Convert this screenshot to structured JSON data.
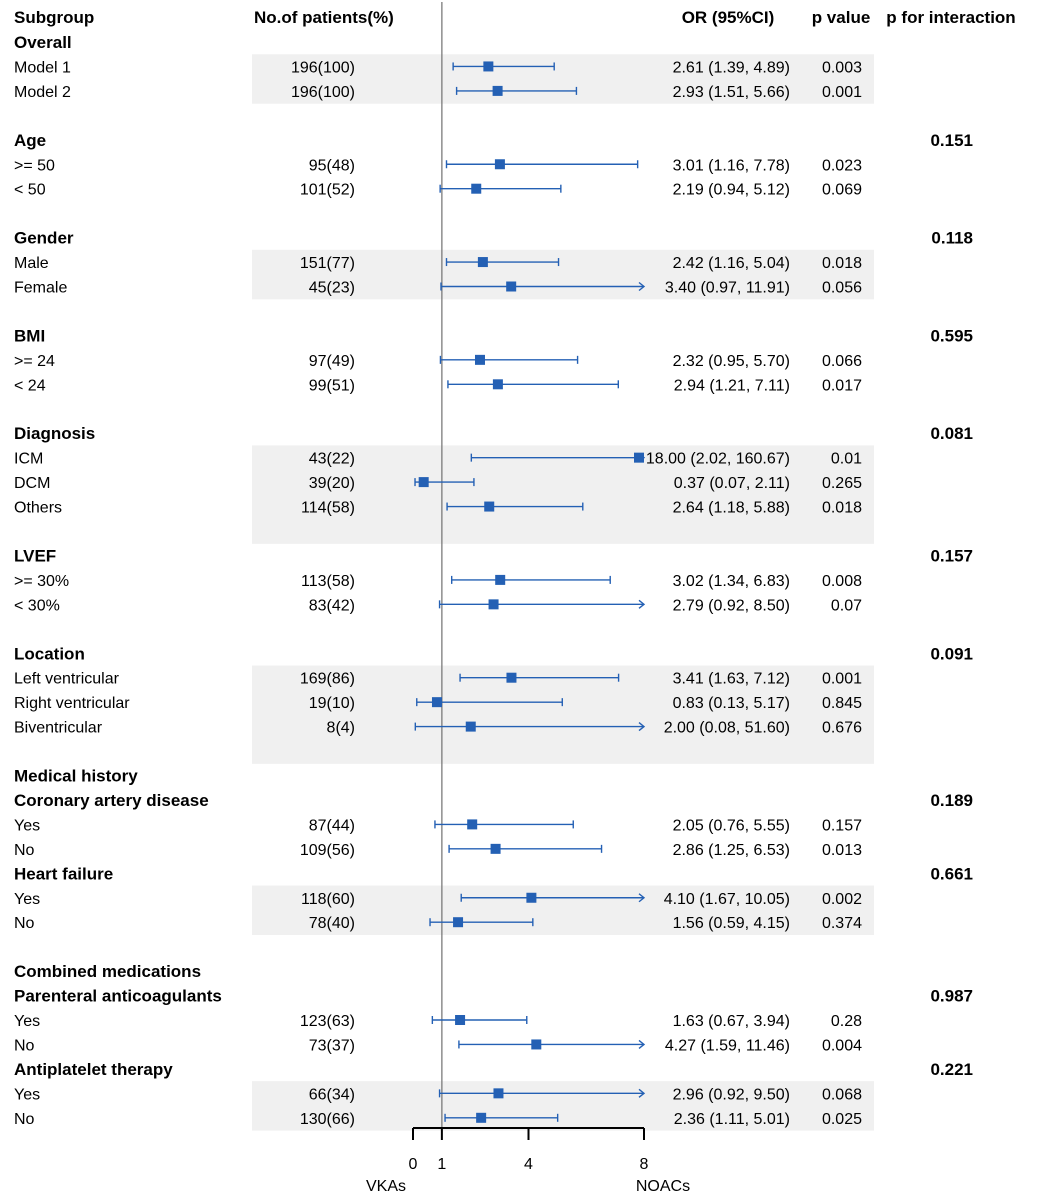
{
  "colors": {
    "marker": "#2460b4",
    "band": "#f0f0f0",
    "axis": "#000000",
    "refline": "#7a7a7a"
  },
  "chart_data": {
    "type": "forest",
    "headers": {
      "subgroup": "Subgroup",
      "patients": "No.of patients(%)",
      "or": "OR (95%CI)",
      "p": "p value",
      "p_interaction": "p for interaction"
    },
    "axis": {
      "xlim": [
        0,
        8
      ],
      "ticks": [
        0,
        1,
        4,
        8
      ],
      "tick_labels": [
        "0",
        "1",
        "4",
        "8"
      ],
      "reference_line": 1,
      "left_label": "VKAs",
      "right_label": "NOACs"
    },
    "rows": [
      {
        "type": "group",
        "label": "Overall",
        "p_interaction": ""
      },
      {
        "type": "item",
        "label": "Model 1",
        "patients": "196(100)",
        "or_text": "2.61 (1.39, 4.89)",
        "p": "0.003",
        "or": 2.61,
        "lo": 1.39,
        "hi": 4.89,
        "band": 1
      },
      {
        "type": "item",
        "label": "Model 2",
        "patients": "196(100)",
        "or_text": "2.93 (1.51, 5.66)",
        "p": "0.001",
        "or": 2.93,
        "lo": 1.51,
        "hi": 5.66,
        "band": 1
      },
      {
        "type": "blank"
      },
      {
        "type": "group",
        "label": "Age",
        "p_interaction": "0.151"
      },
      {
        "type": "item",
        "label": ">= 50",
        "patients": "95(48)",
        "or_text": "3.01 (1.16, 7.78)",
        "p": "0.023",
        "or": 3.01,
        "lo": 1.16,
        "hi": 7.78,
        "band": 0
      },
      {
        "type": "item",
        "label": "< 50",
        "patients": "101(52)",
        "or_text": "2.19 (0.94, 5.12)",
        "p": "0.069",
        "or": 2.19,
        "lo": 0.94,
        "hi": 5.12,
        "band": 0
      },
      {
        "type": "blank"
      },
      {
        "type": "group",
        "label": "Gender",
        "p_interaction": "0.118"
      },
      {
        "type": "item",
        "label": "Male",
        "patients": "151(77)",
        "or_text": "2.42 (1.16, 5.04)",
        "p": "0.018",
        "or": 2.42,
        "lo": 1.16,
        "hi": 5.04,
        "band": 1
      },
      {
        "type": "item",
        "label": "Female",
        "patients": "45(23)",
        "or_text": "3.40 (0.97, 11.91)",
        "p": "0.056",
        "or": 3.4,
        "lo": 0.97,
        "hi": 11.91,
        "band": 1
      },
      {
        "type": "blank"
      },
      {
        "type": "group",
        "label": "BMI",
        "p_interaction": "0.595"
      },
      {
        "type": "item",
        "label": ">= 24",
        "patients": "97(49)",
        "or_text": "2.32 (0.95, 5.70)",
        "p": "0.066",
        "or": 2.32,
        "lo": 0.95,
        "hi": 5.7,
        "band": 0
      },
      {
        "type": "item",
        "label": "< 24",
        "patients": "99(51)",
        "or_text": "2.94 (1.21, 7.11)",
        "p": "0.017",
        "or": 2.94,
        "lo": 1.21,
        "hi": 7.11,
        "band": 0
      },
      {
        "type": "blank"
      },
      {
        "type": "group",
        "label": "Diagnosis",
        "p_interaction": "0.081"
      },
      {
        "type": "item",
        "label": "ICM",
        "patients": "43(22)",
        "or_text": "18.00 (2.02, 160.67)",
        "p": "0.01",
        "or": 18.0,
        "lo": 2.02,
        "hi": 160.67,
        "band": 1
      },
      {
        "type": "item",
        "label": "DCM",
        "patients": "39(20)",
        "or_text": "0.37 (0.07, 2.11)",
        "p": "0.265",
        "or": 0.37,
        "lo": 0.07,
        "hi": 2.11,
        "band": 1
      },
      {
        "type": "item",
        "label": "Others",
        "patients": "114(58)",
        "or_text": "2.64 (1.18, 5.88)",
        "p": "0.018",
        "or": 2.64,
        "lo": 1.18,
        "hi": 5.88,
        "band": 1
      },
      {
        "type": "blank",
        "band": 1
      },
      {
        "type": "group",
        "label": "LVEF",
        "p_interaction": "0.157"
      },
      {
        "type": "item",
        "label": ">= 30%",
        "patients": "113(58)",
        "or_text": "3.02 (1.34, 6.83)",
        "p": "0.008",
        "or": 3.02,
        "lo": 1.34,
        "hi": 6.83,
        "band": 0
      },
      {
        "type": "item",
        "label": "< 30%",
        "patients": "83(42)",
        "or_text": "2.79 (0.92, 8.50)",
        "p": "0.07",
        "or": 2.79,
        "lo": 0.92,
        "hi": 8.5,
        "band": 0
      },
      {
        "type": "blank"
      },
      {
        "type": "group",
        "label": "Location",
        "p_interaction": "0.091"
      },
      {
        "type": "item",
        "label": "Left ventricular",
        "patients": "169(86)",
        "or_text": "3.41 (1.63, 7.12)",
        "p": "0.001",
        "or": 3.41,
        "lo": 1.63,
        "hi": 7.12,
        "band": 1
      },
      {
        "type": "item",
        "label": "Right ventricular",
        "patients": "19(10)",
        "or_text": "0.83 (0.13, 5.17)",
        "p": "0.845",
        "or": 0.83,
        "lo": 0.13,
        "hi": 5.17,
        "band": 1
      },
      {
        "type": "item",
        "label": "Biventricular",
        "patients": "8(4)",
        "or_text": "2.00 (0.08, 51.60)",
        "p": "0.676",
        "or": 2.0,
        "lo": 0.08,
        "hi": 51.6,
        "band": 1
      },
      {
        "type": "blank",
        "band": 1
      },
      {
        "type": "group",
        "label": "Medical history",
        "p_interaction": ""
      },
      {
        "type": "group",
        "label": "Coronary artery disease",
        "p_interaction": "0.189"
      },
      {
        "type": "item",
        "label": "Yes",
        "patients": "87(44)",
        "or_text": "2.05 (0.76, 5.55)",
        "p": "0.157",
        "or": 2.05,
        "lo": 0.76,
        "hi": 5.55,
        "band": 0
      },
      {
        "type": "item",
        "label": "No",
        "patients": "109(56)",
        "or_text": "2.86 (1.25, 6.53)",
        "p": "0.013",
        "or": 2.86,
        "lo": 1.25,
        "hi": 6.53,
        "band": 0
      },
      {
        "type": "group",
        "label": "Heart failure",
        "p_interaction": "0.661"
      },
      {
        "type": "item",
        "label": "Yes",
        "patients": "118(60)",
        "or_text": "4.10 (1.67, 10.05)",
        "p": "0.002",
        "or": 4.1,
        "lo": 1.67,
        "hi": 10.05,
        "band": 1
      },
      {
        "type": "item",
        "label": "No",
        "patients": "78(40)",
        "or_text": "1.56 (0.59, 4.15)",
        "p": "0.374",
        "or": 1.56,
        "lo": 0.59,
        "hi": 4.15,
        "band": 1
      },
      {
        "type": "blank"
      },
      {
        "type": "group",
        "label": "Combined medications",
        "p_interaction": ""
      },
      {
        "type": "group",
        "label": "Parenteral anticoagulants",
        "p_interaction": "0.987"
      },
      {
        "type": "item",
        "label": "Yes",
        "patients": "123(63)",
        "or_text": "1.63 (0.67, 3.94)",
        "p": "0.28",
        "or": 1.63,
        "lo": 0.67,
        "hi": 3.94,
        "band": 0
      },
      {
        "type": "item",
        "label": "No",
        "patients": "73(37)",
        "or_text": "4.27 (1.59, 11.46)",
        "p": "0.004",
        "or": 4.27,
        "lo": 1.59,
        "hi": 11.46,
        "band": 0
      },
      {
        "type": "group",
        "label": "Antiplatelet therapy",
        "p_interaction": "0.221"
      },
      {
        "type": "item",
        "label": "Yes",
        "patients": "66(34)",
        "or_text": "2.96 (0.92, 9.50)",
        "p": "0.068",
        "or": 2.96,
        "lo": 0.92,
        "hi": 9.5,
        "band": 1
      },
      {
        "type": "item",
        "label": "No",
        "patients": "130(66)",
        "or_text": "2.36 (1.11, 5.01)",
        "p": "0.025",
        "or": 2.36,
        "lo": 1.11,
        "hi": 5.01,
        "band": 1
      }
    ]
  }
}
